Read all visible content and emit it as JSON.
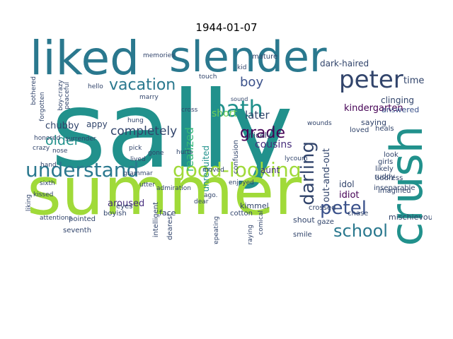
{
  "title": "1944-01-07",
  "colors": {
    "teal": "#21918c",
    "lime": "#a0da39",
    "dark_teal": "#2a788e",
    "navy": "#31446b",
    "purple": "#472f7d",
    "green": "#35b779",
    "light_green": "#6ece58",
    "slate": "#3b528b",
    "violet": "#440154"
  },
  "words": [
    "sally",
    "summer",
    "liked",
    "slender",
    "crush",
    "good-looking",
    "understand",
    "path",
    "peter",
    "petel",
    "vacation",
    "grade",
    "school",
    "darling",
    "boy",
    "older",
    "completely",
    "realized",
    "later",
    "short",
    "cousins",
    "kindergarten",
    "out-and-out",
    "unrequited",
    "chubby",
    "appy",
    "aroused",
    "idiot",
    "idol",
    "kimmel",
    "aunt",
    "time",
    "dark-haired",
    "mature",
    "nicely",
    "confusion",
    "clinging",
    "answered",
    "saying",
    "loved",
    "heals",
    "likely",
    "look",
    "girls",
    "address",
    "inseparable",
    "mischievous",
    "imagined",
    "ruddy",
    "chase",
    "crossed",
    "gaze",
    "shout",
    "smile",
    "cotton",
    "enjoyed",
    "praying",
    "comical",
    "repeating",
    "dearest",
    "intelligent",
    "face",
    "boyish",
    "eyes",
    "pointed",
    "seventh",
    "attentions",
    "kissed",
    "sixth",
    "honored",
    "crazy",
    "hand",
    "nose",
    "bothered",
    "forgotten",
    "peaceful",
    "surrender",
    "memories",
    "marry",
    "touch",
    "cross",
    "pick",
    "gone",
    "lived",
    "moved",
    "hurts",
    "wounds",
    "lycoum",
    "dear",
    "admiration",
    "ago.",
    "kid",
    "hello",
    "boy-crazy",
    "grammar",
    "hung",
    "utter",
    "sound",
    "liking"
  ]
}
